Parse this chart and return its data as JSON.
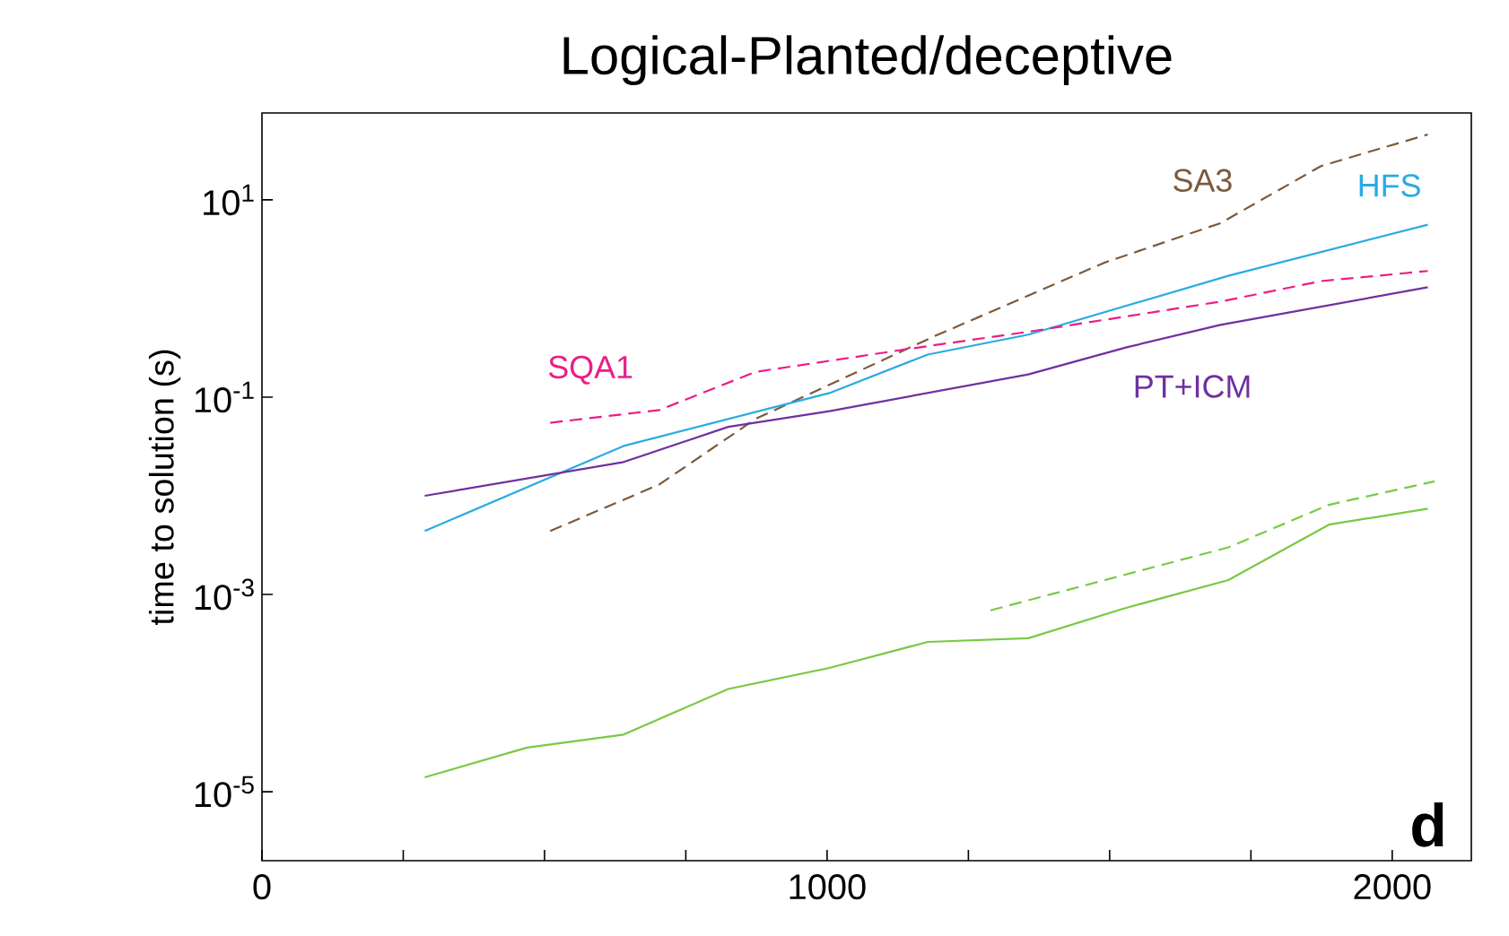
{
  "chart_data": {
    "type": "line",
    "title": "Logical-Planted/deceptive",
    "ylabel": "time to solution (s)",
    "annotations": [
      "d"
    ],
    "log": "y",
    "marker": "none",
    "xlim": [
      0,
      2140
    ],
    "ylim": [
      2e-06,
      76
    ],
    "xticks": [
      0,
      {
        "value": 250,
        "label": null
      },
      {
        "value": 500,
        "label": null
      },
      {
        "value": 750,
        "label": null
      },
      1000,
      {
        "value": 1250,
        "label": null
      },
      {
        "value": 1500,
        "label": null
      },
      {
        "value": 1750,
        "label": null
      },
      2000
    ],
    "yticks": [
      {
        "value": 10,
        "label": "10$^{1}$"
      },
      {
        "value": 0.1,
        "label": "10$^{-1}$"
      },
      {
        "value": 0.001,
        "label": "10$^{-3}$"
      },
      {
        "value": 1e-05,
        "label": "10$^{-5}$"
      }
    ],
    "series": [
      {
        "name": "SA3",
        "color": "#7b5a3c",
        "line_style": "dashed",
        "x": [
          510,
          703,
          873,
          1188,
          1490,
          1696,
          1874,
          2063
        ],
        "values": [
          0.0044,
          0.013,
          0.06,
          0.41,
          2.3,
          5.8,
          22,
          46
        ]
      },
      {
        "name": "HFS",
        "color": "#29abe2",
        "line_style": "solid",
        "x": [
          288,
          640,
          1004,
          1178,
          1356,
          1710,
          2063
        ],
        "values": [
          0.0044,
          0.032,
          0.11,
          0.27,
          0.43,
          1.7,
          5.6
        ]
      },
      {
        "name": "SQA1",
        "color": "#ec1c86",
        "line_style": "dashed",
        "x": [
          510,
          703,
          873,
          1147,
          1367,
          1696,
          1874,
          2063
        ],
        "values": [
          0.055,
          0.074,
          0.18,
          0.31,
          0.47,
          0.93,
          1.5,
          1.9
        ]
      },
      {
        "name": "PT+ICM",
        "color": "#7030a0",
        "line_style": "solid",
        "x": [
          288,
          640,
          825,
          1004,
          1356,
          1530,
          1696,
          2063
        ],
        "values": [
          0.01,
          0.022,
          0.05,
          0.072,
          0.17,
          0.32,
          0.54,
          1.3
        ]
      },
      {
        "color": "#7ac943",
        "line_style": "dashed",
        "x": [
          1289,
          1710,
          1888,
          2075
        ],
        "values": [
          0.00069,
          0.003,
          0.0081,
          0.014
        ]
      },
      {
        "color": "#7ac943",
        "line_style": "solid",
        "x": [
          288,
          469,
          640,
          825,
          1004,
          1178,
          1356,
          1525,
          1710,
          1888,
          2063
        ],
        "values": [
          1.4e-05,
          2.8e-05,
          3.8e-05,
          0.00011,
          0.00018,
          0.00033,
          0.00036,
          0.00072,
          0.0014,
          0.0051,
          0.0074
        ]
      }
    ]
  }
}
